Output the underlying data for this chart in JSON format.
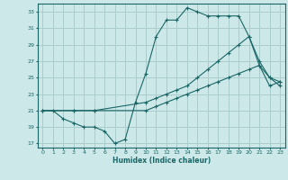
{
  "title": "",
  "xlabel": "Humidex (Indice chaleur)",
  "bg_color": "#cce8e8",
  "grid_color": "#aacccc",
  "line_color": "#1a6666",
  "xlim": [
    -0.5,
    23.5
  ],
  "ylim": [
    16.5,
    34
  ],
  "xticks": [
    0,
    1,
    2,
    3,
    4,
    5,
    6,
    7,
    8,
    9,
    10,
    11,
    12,
    13,
    14,
    15,
    16,
    17,
    18,
    19,
    20,
    21,
    22,
    23
  ],
  "yticks": [
    17,
    19,
    21,
    23,
    25,
    27,
    29,
    31,
    33
  ],
  "line1_x": [
    0,
    1,
    2,
    3,
    4,
    5,
    6,
    7,
    8,
    9,
    10,
    11,
    12,
    13,
    14,
    15,
    16,
    17,
    18,
    19,
    20,
    21,
    22,
    23
  ],
  "line1_y": [
    21.0,
    21.0,
    20.0,
    19.5,
    19.0,
    19.0,
    18.5,
    17.0,
    17.5,
    22.0,
    25.5,
    30.0,
    32.0,
    32.0,
    33.5,
    33.0,
    32.5,
    32.5,
    32.5,
    32.5,
    30.0,
    27.0,
    25.0,
    24.5
  ],
  "line2_x": [
    0,
    3,
    5,
    10,
    11,
    12,
    13,
    14,
    15,
    16,
    17,
    18,
    19,
    20,
    21,
    22,
    23
  ],
  "line2_y": [
    21.0,
    21.0,
    21.0,
    22.0,
    22.5,
    23.0,
    23.5,
    24.0,
    25.0,
    26.0,
    27.0,
    28.0,
    29.0,
    30.0,
    26.5,
    25.0,
    24.0
  ],
  "line3_x": [
    0,
    3,
    5,
    10,
    11,
    12,
    13,
    14,
    15,
    16,
    17,
    18,
    19,
    20,
    21,
    22,
    23
  ],
  "line3_y": [
    21.0,
    21.0,
    21.0,
    21.0,
    21.5,
    22.0,
    22.5,
    23.0,
    23.5,
    24.0,
    24.5,
    25.0,
    25.5,
    26.0,
    26.5,
    24.0,
    24.5
  ]
}
